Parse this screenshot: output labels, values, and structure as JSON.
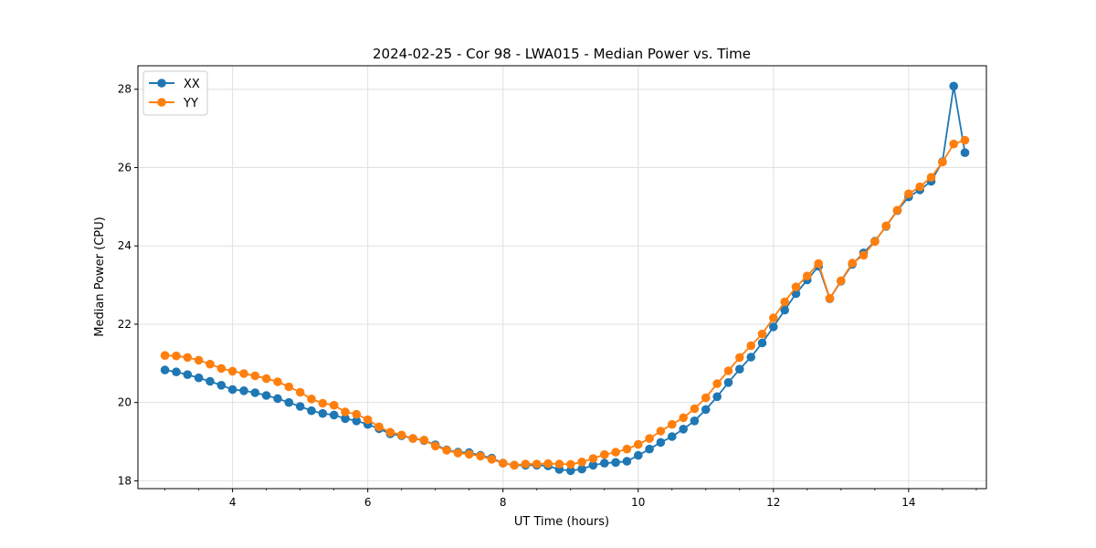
{
  "chart_data": {
    "type": "line",
    "title": "2024-02-25 - Cor 98 - LWA015 - Median Power vs. Time",
    "xlabel": "UT Time (hours)",
    "ylabel": "Median Power (CPU)",
    "xlim": [
      2.6,
      15.15
    ],
    "ylim": [
      17.8,
      28.6
    ],
    "xticks": [
      4,
      6,
      8,
      10,
      12,
      14
    ],
    "yticks": [
      18,
      20,
      22,
      24,
      26,
      28
    ],
    "grid": true,
    "legend_position": "top-left",
    "x": [
      3.0,
      3.167,
      3.333,
      3.5,
      3.667,
      3.833,
      4.0,
      4.167,
      4.333,
      4.5,
      4.667,
      4.833,
      5.0,
      5.167,
      5.333,
      5.5,
      5.667,
      5.833,
      6.0,
      6.167,
      6.333,
      6.5,
      6.667,
      6.833,
      7.0,
      7.167,
      7.333,
      7.5,
      7.667,
      7.833,
      8.0,
      8.167,
      8.333,
      8.5,
      8.667,
      8.833,
      9.0,
      9.167,
      9.333,
      9.5,
      9.667,
      9.833,
      10.0,
      10.167,
      10.333,
      10.5,
      10.667,
      10.833,
      11.0,
      11.167,
      11.333,
      11.5,
      11.667,
      11.833,
      12.0,
      12.167,
      12.333,
      12.5,
      12.667,
      12.833,
      13.0,
      13.167,
      13.333,
      13.5,
      13.667,
      13.833,
      14.0,
      14.167,
      14.333,
      14.5,
      14.667,
      14.833
    ],
    "series": [
      {
        "name": "XX",
        "color": "#1f77b4",
        "values": [
          20.83,
          20.78,
          20.71,
          20.63,
          20.54,
          20.44,
          20.33,
          20.3,
          20.25,
          20.18,
          20.1,
          20.0,
          19.9,
          19.79,
          19.72,
          19.68,
          19.59,
          19.53,
          19.44,
          19.33,
          19.2,
          19.15,
          19.08,
          19.03,
          18.92,
          18.79,
          18.73,
          18.72,
          18.65,
          18.58,
          18.45,
          18.4,
          18.4,
          18.4,
          18.38,
          18.29,
          18.26,
          18.3,
          18.4,
          18.45,
          18.47,
          18.5,
          18.65,
          18.81,
          18.98,
          19.13,
          19.32,
          19.53,
          19.82,
          20.15,
          20.51,
          20.85,
          21.16,
          21.52,
          21.93,
          22.36,
          22.78,
          23.13,
          23.48,
          22.65,
          23.1,
          23.53,
          23.82,
          24.12,
          24.5,
          24.9,
          25.25,
          25.43,
          25.65,
          26.15,
          28.08,
          26.38
        ]
      },
      {
        "name": "YY",
        "color": "#ff7f0e",
        "values": [
          21.2,
          21.19,
          21.15,
          21.08,
          20.98,
          20.87,
          20.8,
          20.74,
          20.68,
          20.61,
          20.53,
          20.4,
          20.26,
          20.09,
          19.98,
          19.93,
          19.76,
          19.7,
          19.56,
          19.38,
          19.24,
          19.17,
          19.08,
          19.04,
          18.89,
          18.78,
          18.71,
          18.68,
          18.63,
          18.55,
          18.45,
          18.4,
          18.43,
          18.43,
          18.44,
          18.43,
          18.42,
          18.48,
          18.57,
          18.67,
          18.73,
          18.81,
          18.93,
          19.08,
          19.27,
          19.44,
          19.61,
          19.84,
          20.12,
          20.48,
          20.81,
          21.15,
          21.45,
          21.75,
          22.16,
          22.57,
          22.95,
          23.23,
          23.55,
          22.66,
          23.11,
          23.56,
          23.76,
          24.11,
          24.51,
          24.91,
          25.33,
          25.51,
          25.75,
          26.14,
          26.6,
          26.7
        ]
      }
    ]
  }
}
